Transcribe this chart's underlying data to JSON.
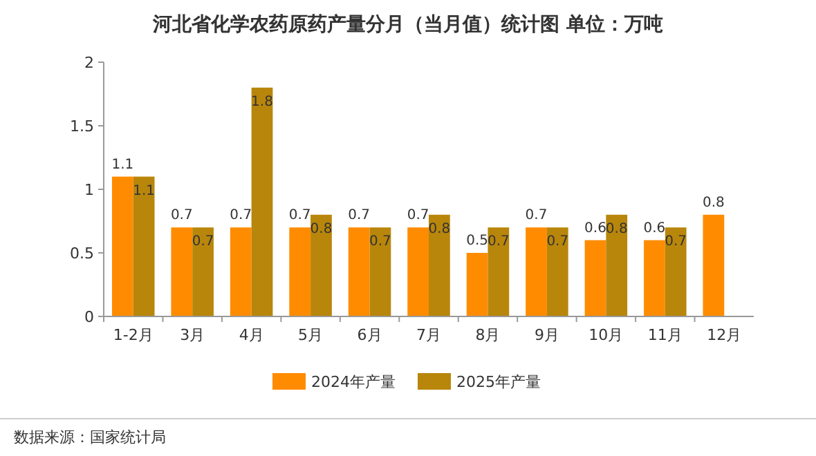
{
  "chart_data": {
    "type": "bar",
    "title": "河北省化学农药原药产量分月（当月值）统计图 单位：万吨",
    "categories": [
      "1-2月",
      "3月",
      "4月",
      "5月",
      "6月",
      "7月",
      "8月",
      "9月",
      "10月",
      "11月",
      "12月"
    ],
    "series": [
      {
        "name": "2024年产量",
        "color": "#ff8c00",
        "values": [
          1.1,
          0.7,
          0.7,
          0.7,
          0.7,
          0.7,
          0.5,
          0.7,
          0.6,
          0.6,
          0.8
        ]
      },
      {
        "name": "2025年产量",
        "color": "#b8860b",
        "values": [
          1.1,
          0.7,
          1.8,
          0.8,
          0.7,
          0.8,
          0.7,
          0.7,
          0.8,
          0.7,
          null
        ]
      }
    ],
    "ylim": [
      0,
      2
    ],
    "yticks": [
      0,
      0.5,
      1,
      1.5,
      2
    ],
    "data_labels": true,
    "legend": "bottom",
    "annotations": [
      "数据来源：国家统计局"
    ]
  }
}
